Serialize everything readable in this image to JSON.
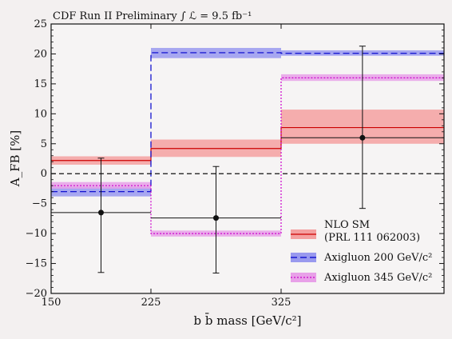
{
  "chart_data": {
    "type": "step",
    "title": "CDF Run II Preliminary ∫ ℒ = 9.5 fb⁻¹",
    "xlabel": "b b̄ mass [GeV/c²]",
    "ylabel": "A_FB [%]",
    "xlim": [
      150,
      350
    ],
    "ylim": [
      -20,
      25
    ],
    "x_ticks": [
      150,
      225,
      325
    ],
    "y_ticks": [
      -20,
      -15,
      -10,
      -5,
      0,
      5,
      10,
      15,
      20,
      25
    ],
    "bins": [
      [
        150,
        225
      ],
      [
        225,
        325
      ],
      [
        325,
        450
      ]
    ],
    "series": [
      {
        "name": "NLO SM\n(PRL 111 062003)",
        "color": "#cc0000",
        "fill": "#f4a0a0",
        "values": [
          2.2,
          4.2,
          7.7
        ],
        "band_low": [
          1.5,
          2.8,
          5.0
        ],
        "band_high": [
          2.9,
          5.7,
          10.7
        ]
      },
      {
        "name": "Axigluon 200 GeV/c²",
        "color": "#0000cc",
        "fill": "#9999ee",
        "values": [
          -3.0,
          20.2,
          20.1
        ],
        "band_low": [
          -3.8,
          19.3,
          19.7
        ],
        "band_high": [
          -2.2,
          21.0,
          20.6
        ]
      },
      {
        "name": "Axigluon 345 GeV/c²",
        "color": "#cc00cc",
        "fill": "#e8a0e8",
        "values": [
          -2.0,
          -10.0,
          16.0
        ],
        "band_low": [
          -2.5,
          -10.5,
          15.5
        ],
        "band_high": [
          -1.4,
          -9.5,
          16.6
        ]
      }
    ],
    "data_points": {
      "x": [
        187.5,
        275,
        387.5
      ],
      "y": [
        -6.5,
        -7.4,
        6.0
      ],
      "err_low": [
        -16.5,
        -16.6,
        -5.8
      ],
      "err_high": [
        2.6,
        1.2,
        21.3
      ],
      "bin_levels": [
        -6.5,
        -7.4,
        6.0
      ]
    },
    "zero_line": 0,
    "legend_placement": "bottom-right"
  }
}
